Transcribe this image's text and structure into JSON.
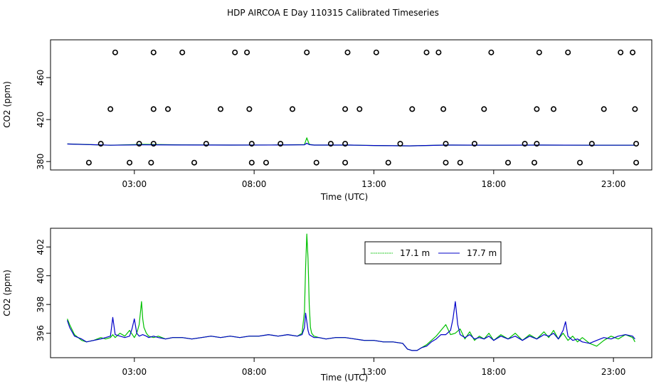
{
  "title": "HDP AIRCOA E  Day 110315  Calibrated Timeseries",
  "colors": {
    "green": "#00c000",
    "blue": "#0000c8",
    "frame": "#000000"
  },
  "chart_data": [
    {
      "type": "scatter",
      "panel": "top",
      "xlabel": "Time (UTC)",
      "ylabel": "CO2 (ppm)",
      "xlim": [
        -0.5,
        24.6
      ],
      "ylim": [
        372,
        496
      ],
      "xticks": [
        3,
        8,
        13,
        18,
        23
      ],
      "xtick_labels": [
        "03:00",
        "08:00",
        "13:00",
        "18:00",
        "23:00"
      ],
      "yticks": [
        380,
        420,
        460
      ],
      "ytick_labels": [
        "380",
        "420",
        "460"
      ],
      "levels": {
        "l1": 379,
        "l2": 397,
        "l3": 430,
        "l4": 484,
        "x_l1": [
          1.1,
          2.8,
          3.7,
          5.5,
          7.9,
          8.5,
          10.6,
          11.8,
          13.6,
          16.0,
          16.6,
          18.6,
          19.7,
          21.6,
          23.95
        ],
        "x_l2": [
          1.6,
          3.2,
          3.8,
          6.0,
          7.9,
          9.1,
          11.2,
          11.8,
          14.1,
          16.0,
          17.2,
          19.3,
          19.8,
          22.1,
          23.95
        ],
        "x_l3": [
          2.0,
          4.4,
          3.8,
          6.6,
          7.8,
          9.6,
          11.8,
          12.4,
          14.6,
          15.9,
          17.6,
          19.8,
          20.5,
          22.6,
          23.9
        ],
        "x_l4": [
          2.2,
          3.8,
          5.0,
          7.2,
          7.7,
          10.2,
          11.9,
          13.1,
          15.2,
          15.7,
          17.9,
          19.9,
          21.1,
          23.3,
          23.8
        ]
      },
      "series": [
        {
          "color": "green",
          "x": [
            0.2,
            2,
            3.4,
            5,
            7,
            9,
            10.1,
            10.2,
            10.3,
            10.5,
            12,
            13,
            14.5,
            16,
            18,
            20,
            22,
            23.9
          ],
          "y": [
            396.8,
            395.6,
            396.4,
            395.9,
            395.7,
            395.8,
            396.2,
            402.6,
            396.4,
            395.7,
            395.7,
            395.3,
            395.0,
            395.7,
            395.6,
            395.7,
            395.6,
            395.6
          ]
        },
        {
          "color": "blue",
          "x": [
            0.2,
            2,
            3.4,
            5,
            7,
            9,
            10.1,
            10.2,
            10.3,
            10.5,
            12,
            13,
            14.5,
            16,
            18,
            20,
            22,
            23.9
          ],
          "y": [
            396.7,
            395.6,
            396.0,
            395.8,
            395.7,
            395.8,
            396.0,
            397.5,
            396.1,
            395.7,
            395.7,
            395.3,
            395.0,
            395.7,
            395.6,
            395.7,
            395.6,
            395.6
          ]
        }
      ]
    },
    {
      "type": "line",
      "panel": "bottom",
      "xlabel": "Time (UTC)",
      "ylabel": "CO2 (ppm)",
      "xlim": [
        -0.5,
        24.6
      ],
      "ylim": [
        394.3,
        403.3
      ],
      "xticks": [
        3,
        8,
        13,
        18,
        23
      ],
      "xtick_labels": [
        "03:00",
        "08:00",
        "13:00",
        "18:00",
        "23:00"
      ],
      "yticks": [
        396,
        398,
        400,
        402
      ],
      "ytick_labels": [
        "396",
        "398",
        "400",
        "402"
      ],
      "legend": {
        "position": "top-center"
      },
      "series": [
        {
          "name": "17.1 m",
          "color": "green",
          "x": [
            0.2,
            0.3,
            0.5,
            0.8,
            1.0,
            1.3,
            1.6,
            1.8,
            2.0,
            2.1,
            2.2,
            2.4,
            2.6,
            2.8,
            3.0,
            3.1,
            3.2,
            3.3,
            3.35,
            3.4,
            3.5,
            3.6,
            3.8,
            4.0,
            4.3,
            4.6,
            5.0,
            5.4,
            5.8,
            6.2,
            6.6,
            7.0,
            7.4,
            7.8,
            8.2,
            8.6,
            9.0,
            9.4,
            9.8,
            10.0,
            10.1,
            10.15,
            10.2,
            10.25,
            10.3,
            10.35,
            10.4,
            10.5,
            10.7,
            11.0,
            11.4,
            11.8,
            12.2,
            12.6,
            13.0,
            13.4,
            13.8,
            14.2,
            14.4,
            14.6,
            14.8,
            15.0,
            15.2,
            15.4,
            15.6,
            15.8,
            16.0,
            16.2,
            16.4,
            16.6,
            16.8,
            17.0,
            17.2,
            17.4,
            17.6,
            17.8,
            18.0,
            18.3,
            18.6,
            18.9,
            19.2,
            19.5,
            19.8,
            20.1,
            20.3,
            20.5,
            20.7,
            20.9,
            21.1,
            21.3,
            21.5,
            21.7,
            22.0,
            22.3,
            22.6,
            22.9,
            23.2,
            23.5,
            23.8,
            23.9
          ],
          "y": [
            397.0,
            396.6,
            395.9,
            395.5,
            395.4,
            395.5,
            395.7,
            395.6,
            395.7,
            395.9,
            395.7,
            396.0,
            395.8,
            396.2,
            395.7,
            396.0,
            396.6,
            398.2,
            397.0,
            396.4,
            396.0,
            395.8,
            395.7,
            395.8,
            395.6,
            395.7,
            395.7,
            395.6,
            395.7,
            395.8,
            395.7,
            395.8,
            395.7,
            395.8,
            395.8,
            395.9,
            395.8,
            395.9,
            395.8,
            396.0,
            397.5,
            400.6,
            402.9,
            401.2,
            398.0,
            396.4,
            396.0,
            395.8,
            395.7,
            395.6,
            395.7,
            395.7,
            395.6,
            395.5,
            395.5,
            395.4,
            395.4,
            395.3,
            394.9,
            394.8,
            394.8,
            395.0,
            395.2,
            395.5,
            395.8,
            396.2,
            396.6,
            395.9,
            396.0,
            396.3,
            395.6,
            396.1,
            395.5,
            395.8,
            395.6,
            396.0,
            395.5,
            395.9,
            395.6,
            396.0,
            395.5,
            395.9,
            395.6,
            396.1,
            395.7,
            396.2,
            395.6,
            396.0,
            395.5,
            395.8,
            395.4,
            395.7,
            395.3,
            395.1,
            395.5,
            395.8,
            395.6,
            395.9,
            395.7,
            395.4
          ]
        },
        {
          "name": "17.7 m",
          "color": "blue",
          "x": [
            0.2,
            0.3,
            0.5,
            0.8,
            1.0,
            1.3,
            1.6,
            1.8,
            2.0,
            2.1,
            2.2,
            2.4,
            2.6,
            2.8,
            2.9,
            3.0,
            3.1,
            3.2,
            3.35,
            3.5,
            3.6,
            3.8,
            4.0,
            4.3,
            4.6,
            5.0,
            5.4,
            5.8,
            6.2,
            6.6,
            7.0,
            7.4,
            7.8,
            8.2,
            8.6,
            9.0,
            9.4,
            9.8,
            10.0,
            10.1,
            10.15,
            10.2,
            10.25,
            10.3,
            10.4,
            10.5,
            10.7,
            11.0,
            11.4,
            11.8,
            12.2,
            12.6,
            13.0,
            13.4,
            13.8,
            14.2,
            14.4,
            14.6,
            14.8,
            15.0,
            15.2,
            15.4,
            15.6,
            15.8,
            16.0,
            16.2,
            16.3,
            16.4,
            16.5,
            16.6,
            16.8,
            17.0,
            17.2,
            17.4,
            17.6,
            17.8,
            18.0,
            18.3,
            18.6,
            18.9,
            19.2,
            19.5,
            19.8,
            20.1,
            20.3,
            20.5,
            20.7,
            20.9,
            21.0,
            21.1,
            21.3,
            21.5,
            21.7,
            22.0,
            22.3,
            22.6,
            22.9,
            23.2,
            23.5,
            23.8,
            23.9
          ],
          "y": [
            396.9,
            396.4,
            395.8,
            395.6,
            395.4,
            395.5,
            395.6,
            395.7,
            395.8,
            397.1,
            395.9,
            395.8,
            395.7,
            395.8,
            396.3,
            397.0,
            396.0,
            395.8,
            395.9,
            395.8,
            395.7,
            395.8,
            395.7,
            395.6,
            395.7,
            395.7,
            395.6,
            395.7,
            395.8,
            395.7,
            395.8,
            395.7,
            395.8,
            395.8,
            395.9,
            395.8,
            395.9,
            395.8,
            395.9,
            396.4,
            397.4,
            396.8,
            396.2,
            395.9,
            395.8,
            395.7,
            395.7,
            395.6,
            395.7,
            395.7,
            395.6,
            395.5,
            395.5,
            395.4,
            395.4,
            395.3,
            394.9,
            394.8,
            394.8,
            395.0,
            395.1,
            395.4,
            395.6,
            395.9,
            395.9,
            396.2,
            397.0,
            398.2,
            396.6,
            395.9,
            395.7,
            395.9,
            395.6,
            395.7,
            395.6,
            395.8,
            395.5,
            395.8,
            395.6,
            395.8,
            395.5,
            395.8,
            395.6,
            395.9,
            395.8,
            396.0,
            395.6,
            396.2,
            396.8,
            395.8,
            395.5,
            395.6,
            395.4,
            395.3,
            395.5,
            395.7,
            395.6,
            395.8,
            395.9,
            395.8,
            395.6
          ]
        }
      ]
    }
  ]
}
